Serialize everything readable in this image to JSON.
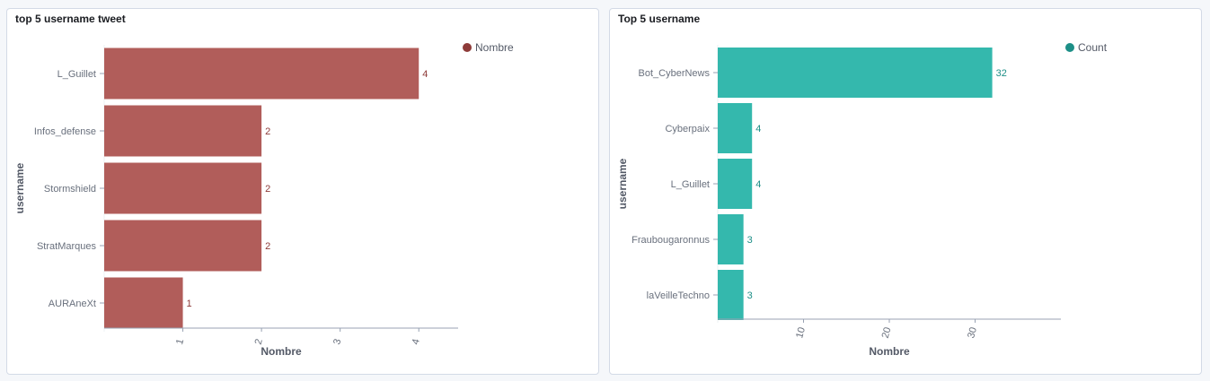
{
  "panels": [
    {
      "title": "top 5 username tweet"
    },
    {
      "title": "Top 5 username"
    }
  ],
  "chart_data": [
    {
      "type": "bar",
      "orientation": "horizontal",
      "title": "top 5 username tweet",
      "categories": [
        "L_Guillet",
        "Infos_defense",
        "Stormshield",
        "StratMarques",
        "AURAneXt"
      ],
      "series": [
        {
          "name": "Nombre",
          "values": [
            4,
            2,
            2,
            2,
            1
          ]
        }
      ],
      "xlabel": "Nombre",
      "ylabel": "username",
      "xlim": [
        0,
        4.5
      ],
      "xticks": [
        "1",
        "2",
        "3",
        "4"
      ],
      "legend": "top-right",
      "color": "#b15d5a",
      "label_color": "#8e3b39"
    },
    {
      "type": "bar",
      "orientation": "horizontal",
      "title": "Top 5 username",
      "categories": [
        "Bot_CyberNews",
        "Cyberpaix",
        "L_Guillet",
        "Fraubougaronnus",
        "laVeilleTechno"
      ],
      "series": [
        {
          "name": "Count",
          "values": [
            32,
            4,
            4,
            3,
            3
          ]
        }
      ],
      "xlabel": "Nombre",
      "ylabel": "username",
      "xlim": [
        0,
        40
      ],
      "xticks": [
        "10",
        "20",
        "30"
      ],
      "legend": "top-right",
      "color": "#34b8ad",
      "label_color": "#1d8f87"
    }
  ]
}
